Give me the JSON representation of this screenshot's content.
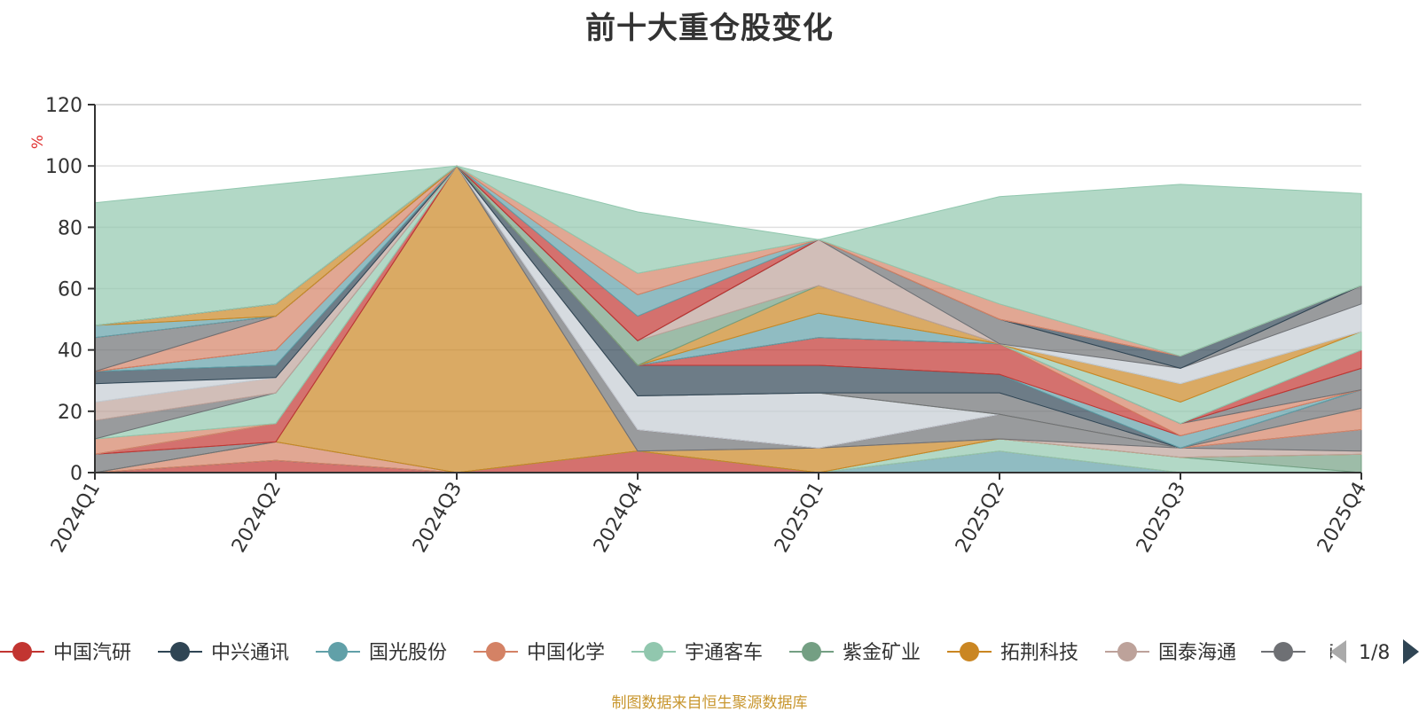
{
  "chart_data": {
    "type": "area",
    "stacked": true,
    "title": "前十大重仓股变化",
    "ylabel": "%",
    "ylim": [
      0,
      120
    ],
    "yticks": [
      0,
      20,
      40,
      60,
      80,
      100,
      120
    ],
    "categories": [
      "2024Q1",
      "2024Q2",
      "2024Q3",
      "2024Q4",
      "2025Q1",
      "2025Q2",
      "2025Q3",
      "2025Q4"
    ],
    "series": [
      {
        "name": "中国汽研",
        "color": "#c23531",
        "values": [
          0,
          4,
          0,
          7,
          0,
          0,
          0,
          0
        ]
      },
      {
        "name": "中兴通讯",
        "color": "#2f4554",
        "values": [
          0,
          0,
          0,
          0,
          0,
          0,
          0,
          0
        ]
      },
      {
        "name": "国光股份",
        "color": "#61a0a8",
        "values": [
          0,
          0,
          0,
          0,
          0,
          7,
          0,
          0
        ]
      },
      {
        "name": "中国化学",
        "color": "#d48265",
        "values": [
          0,
          6,
          0,
          0,
          0,
          0,
          0,
          0
        ]
      },
      {
        "name": "宇通客车",
        "color": "#91c7ae",
        "values": [
          0,
          0,
          0,
          0,
          0,
          4,
          5,
          0
        ]
      },
      {
        "name": "紫金矿业",
        "color": "#749f83",
        "values": [
          0,
          0,
          0,
          0,
          0,
          0,
          0,
          6
        ]
      },
      {
        "name": "拓荆科技",
        "color": "#ca8622",
        "values": [
          0,
          0,
          100,
          0,
          8,
          0,
          0,
          0
        ]
      },
      {
        "name": "国泰海通",
        "color": "#bda29a",
        "values": [
          0,
          0,
          0,
          0,
          0,
          0,
          3,
          1
        ]
      },
      {
        "name": "",
        "color": "#6e7074",
        "values": [
          6,
          0,
          0,
          7,
          0,
          8,
          0,
          7
        ]
      },
      {
        "name": "",
        "color": "#c23531",
        "values": [
          0,
          6,
          0,
          0,
          0,
          0,
          0,
          0
        ]
      },
      {
        "name": "",
        "color": "#546570",
        "values": [
          0,
          0,
          0,
          0,
          0,
          0,
          0,
          0
        ]
      },
      {
        "name": "",
        "color": "#c4ccd3",
        "values": [
          0,
          0,
          0,
          11,
          18,
          0,
          0,
          0
        ]
      },
      {
        "name": "",
        "color": "#d48265",
        "values": [
          5,
          0,
          0,
          0,
          0,
          0,
          0,
          7
        ]
      },
      {
        "name": "",
        "color": "#91c7ae",
        "values": [
          0,
          10,
          0,
          0,
          0,
          0,
          0,
          0
        ]
      },
      {
        "name": "",
        "color": "#6e7074",
        "values": [
          6,
          0,
          0,
          0,
          0,
          7,
          0,
          6
        ]
      },
      {
        "name": "",
        "color": "#bda29a",
        "values": [
          6,
          5,
          0,
          0,
          0,
          0,
          0,
          0
        ]
      },
      {
        "name": "",
        "color": "#c4ccd3",
        "values": [
          6,
          0,
          0,
          0,
          0,
          0,
          0,
          0
        ]
      },
      {
        "name": "",
        "color": "#2f4554",
        "values": [
          4,
          4,
          0,
          10,
          9,
          6,
          0,
          0
        ]
      },
      {
        "name": "",
        "color": "#61a0a8",
        "values": [
          0,
          5,
          0,
          0,
          0,
          0,
          4,
          0
        ]
      },
      {
        "name": "",
        "color": "#c23531",
        "values": [
          0,
          0,
          0,
          0,
          9,
          10,
          0,
          0
        ]
      },
      {
        "name": "",
        "color": "#d48265",
        "values": [
          0,
          11,
          0,
          0,
          0,
          0,
          4,
          0
        ]
      },
      {
        "name": "",
        "color": "#6e7074",
        "values": [
          11,
          0,
          0,
          0,
          0,
          0,
          0,
          7
        ]
      },
      {
        "name": "",
        "color": "#c23531",
        "values": [
          0,
          0,
          0,
          0,
          0,
          0,
          0,
          6
        ]
      },
      {
        "name": "",
        "color": "#61a0a8",
        "values": [
          4,
          0,
          0,
          0,
          8,
          0,
          0,
          0
        ]
      },
      {
        "name": "",
        "color": "#91c7ae",
        "values": [
          0,
          0,
          0,
          0,
          0,
          0,
          7,
          6
        ]
      },
      {
        "name": "",
        "color": "#ca8622",
        "values": [
          0,
          4,
          0,
          0,
          9,
          0,
          6,
          0
        ]
      },
      {
        "name": "",
        "color": "#749f83",
        "values": [
          0,
          0,
          0,
          8,
          0,
          0,
          0,
          0
        ]
      },
      {
        "name": "",
        "color": "#bda29a",
        "values": [
          0,
          0,
          0,
          0,
          15,
          0,
          0,
          0
        ]
      },
      {
        "name": "",
        "color": "#c4ccd3",
        "values": [
          0,
          0,
          0,
          0,
          0,
          0,
          5,
          9
        ]
      },
      {
        "name": "",
        "color": "#6e7074",
        "values": [
          0,
          0,
          0,
          0,
          0,
          8,
          0,
          6
        ]
      },
      {
        "name": "",
        "color": "#2f4554",
        "values": [
          0,
          0,
          0,
          0,
          0,
          0,
          4,
          0
        ]
      },
      {
        "name": "",
        "color": "#c23531",
        "values": [
          0,
          0,
          0,
          8,
          0,
          0,
          0,
          0
        ]
      },
      {
        "name": "",
        "color": "#61a0a8",
        "values": [
          0,
          0,
          0,
          7,
          0,
          0,
          0,
          0
        ]
      },
      {
        "name": "",
        "color": "#d48265",
        "values": [
          0,
          0,
          0,
          7,
          0,
          5,
          0,
          0
        ]
      },
      {
        "name": "",
        "color": "#91c7ae",
        "values": [
          40,
          39,
          0,
          20,
          0,
          35,
          56,
          30
        ]
      }
    ],
    "legend": {
      "items": [
        "中国汽研",
        "中兴通讯",
        "国光股份",
        "中国化学",
        "宇通客车",
        "紫金矿业",
        "拓荆科技",
        "国泰海通",
        "海"
      ],
      "page": "1/8",
      "placement": "bottom"
    },
    "grid": true,
    "source_note": "制图数据来自恒生聚源数据库"
  }
}
